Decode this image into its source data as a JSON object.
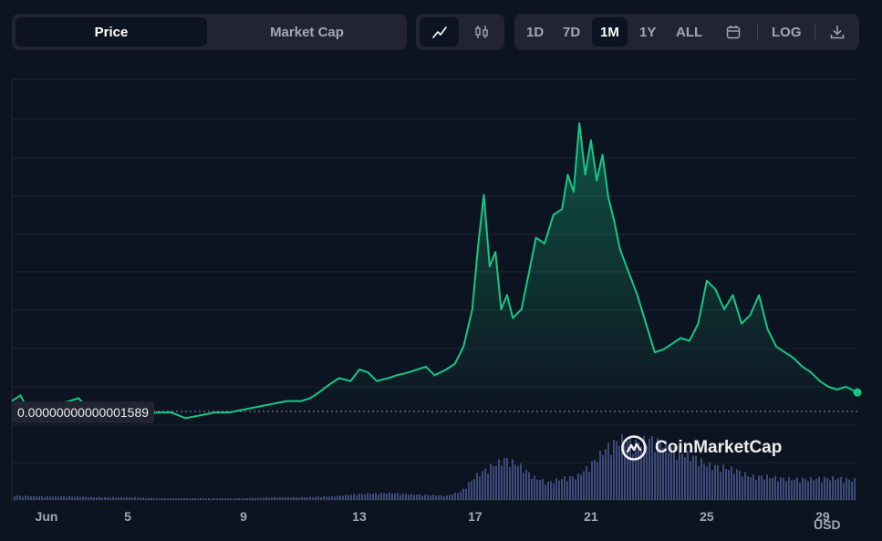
{
  "toolbar": {
    "type_tabs": [
      {
        "label": "Price",
        "active": true
      },
      {
        "label": "Market Cap",
        "active": false
      }
    ],
    "chart_tabs": [
      {
        "icon": "line-chart-icon",
        "active": true
      },
      {
        "icon": "candlestick-icon",
        "active": false
      }
    ],
    "range_tabs": [
      {
        "label": "1D",
        "active": false
      },
      {
        "label": "7D",
        "active": false
      },
      {
        "label": "1M",
        "active": true
      },
      {
        "label": "1Y",
        "active": false
      },
      {
        "label": "ALL",
        "active": false
      }
    ],
    "calendar_icon": "calendar-icon",
    "log_label": "LOG",
    "download_icon": "download-icon"
  },
  "price_label": "0.00000000000001589",
  "watermark": "CoinMarketCap",
  "currency": "USD",
  "colors": {
    "background": "#0d1421",
    "line": "#16c784",
    "down": "#ea3943",
    "volume": "#3d4a7a",
    "panel": "#222531"
  },
  "chart_data": {
    "type": "area",
    "title": "",
    "xlabel": "",
    "ylabel": "",
    "x_ticks": [
      "Jun",
      "5",
      "9",
      "13",
      "17",
      "21",
      "25",
      "29"
    ],
    "x_tick_days": [
      1,
      5,
      9,
      13,
      17,
      21,
      25,
      29
    ],
    "x_range": [
      1,
      30.2
    ],
    "y_range": [
      0,
      100
    ],
    "y_scale": "relative",
    "gridlines": true,
    "current_price_label": "0.00000000000001589",
    "current_price_level": 4,
    "series": [
      {
        "x": [
          1.0,
          1.3,
          1.5,
          1.8,
          2.0,
          2.3,
          2.6,
          3.0,
          3.3,
          3.6,
          4.0,
          4.3,
          4.6,
          5.0,
          5.5,
          6.0,
          6.5,
          7.0,
          7.5,
          8.0,
          8.5,
          9.0,
          9.5,
          10.0,
          10.5,
          11.0,
          11.3,
          11.6,
          12.0,
          12.3,
          12.7,
          13.0,
          13.3,
          13.6,
          14.0,
          14.3,
          14.7,
          15.0,
          15.3,
          15.6,
          16.0,
          16.3,
          16.6,
          16.9,
          17.1,
          17.3,
          17.5,
          17.7,
          17.9,
          18.1,
          18.3,
          18.6,
          18.9,
          19.1,
          19.4,
          19.7,
          20.0,
          20.2,
          20.4,
          20.6,
          20.8,
          21.0,
          21.2,
          21.4,
          21.6,
          21.8,
          22.0,
          22.3,
          22.6,
          22.9,
          23.2,
          23.5,
          23.8,
          24.1,
          24.4,
          24.7,
          25.0,
          25.3,
          25.6,
          25.9,
          26.2,
          26.5,
          26.8,
          27.1,
          27.4,
          27.7,
          28.0,
          28.3,
          28.6,
          28.9,
          29.2,
          29.5,
          29.8,
          30.2
        ],
        "values": [
          3,
          5,
          1,
          2,
          0,
          1,
          2,
          3,
          4,
          1,
          2,
          0,
          -1,
          -1,
          -2,
          -1,
          -1,
          -3,
          -2,
          -1,
          -1,
          0,
          1,
          2,
          3,
          3,
          4,
          6,
          9,
          11,
          10,
          14,
          13,
          10,
          11,
          12,
          13,
          14,
          15,
          12,
          14,
          16,
          22,
          35,
          57,
          75,
          50,
          55,
          35,
          40,
          32,
          35,
          50,
          60,
          58,
          68,
          70,
          82,
          76,
          100,
          82,
          94,
          80,
          89,
          74,
          66,
          56,
          48,
          40,
          30,
          20,
          21,
          23,
          25,
          24,
          30,
          45,
          42,
          35,
          40,
          30,
          33,
          40,
          28,
          22,
          20,
          18,
          15,
          13,
          10,
          8,
          7,
          8,
          6
        ]
      }
    ],
    "volume": {
      "x": [
        1,
        2,
        3,
        4,
        5,
        6,
        7,
        8,
        9,
        10,
        11,
        12,
        13,
        14,
        15,
        16,
        16.5,
        17,
        17.5,
        18,
        18.5,
        19,
        19.5,
        20,
        20.5,
        21,
        21.5,
        22,
        22.5,
        23,
        23.5,
        24,
        24.5,
        25,
        25.5,
        26,
        26.5,
        27,
        27.5,
        28,
        28.5,
        29,
        29.5,
        30
      ],
      "values": [
        5,
        4,
        4,
        3,
        3,
        2,
        2,
        2,
        2,
        3,
        3,
        4,
        7,
        8,
        6,
        5,
        10,
        28,
        38,
        47,
        40,
        26,
        20,
        25,
        27,
        42,
        60,
        70,
        65,
        70,
        64,
        55,
        50,
        40,
        38,
        34,
        27,
        27,
        25,
        24,
        24,
        25,
        25,
        23
      ]
    }
  }
}
